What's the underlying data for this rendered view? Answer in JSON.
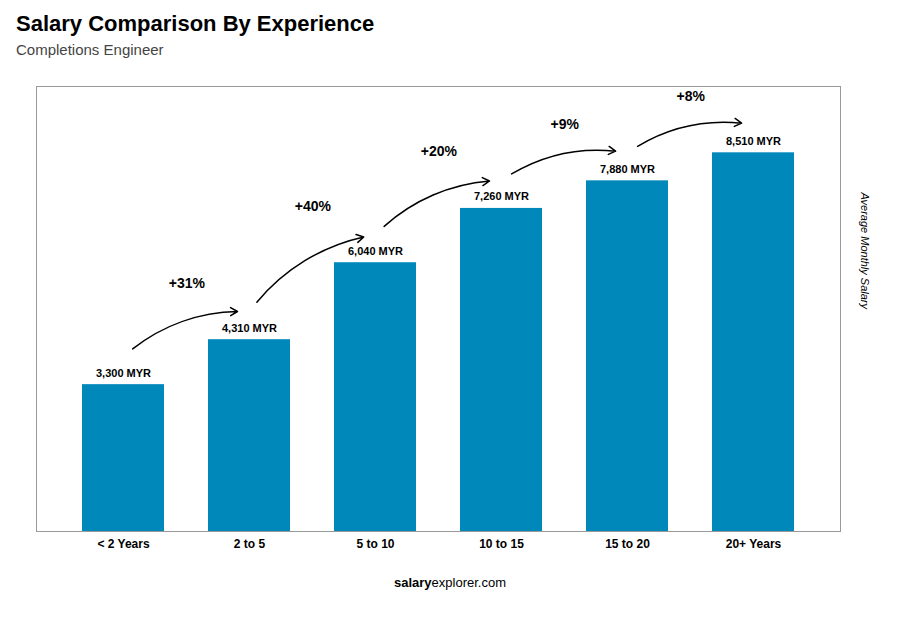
{
  "chart_data": {
    "type": "bar",
    "title": "Salary Comparison By Experience",
    "subtitle": "Completions Engineer",
    "ylabel": "Average Monthly Salary",
    "categories": [
      "< 2 Years",
      "2 to 5",
      "5 to 10",
      "10 to 15",
      "15 to 20",
      "20+ Years"
    ],
    "values": [
      3300,
      4310,
      6040,
      7260,
      7880,
      8510
    ],
    "value_labels": [
      "3,300 MYR",
      "4,310 MYR",
      "6,040 MYR",
      "7,260 MYR",
      "7,880 MYR",
      "8,510 MYR"
    ],
    "data_labels": true,
    "annotations": [
      "+31%",
      "+40%",
      "+20%",
      "+9%",
      "+8%"
    ],
    "source": [
      "salary",
      "explorer.com"
    ],
    "color": "#0088BB",
    "ylim": [
      0,
      10000
    ],
    "tick_labels": "x"
  }
}
